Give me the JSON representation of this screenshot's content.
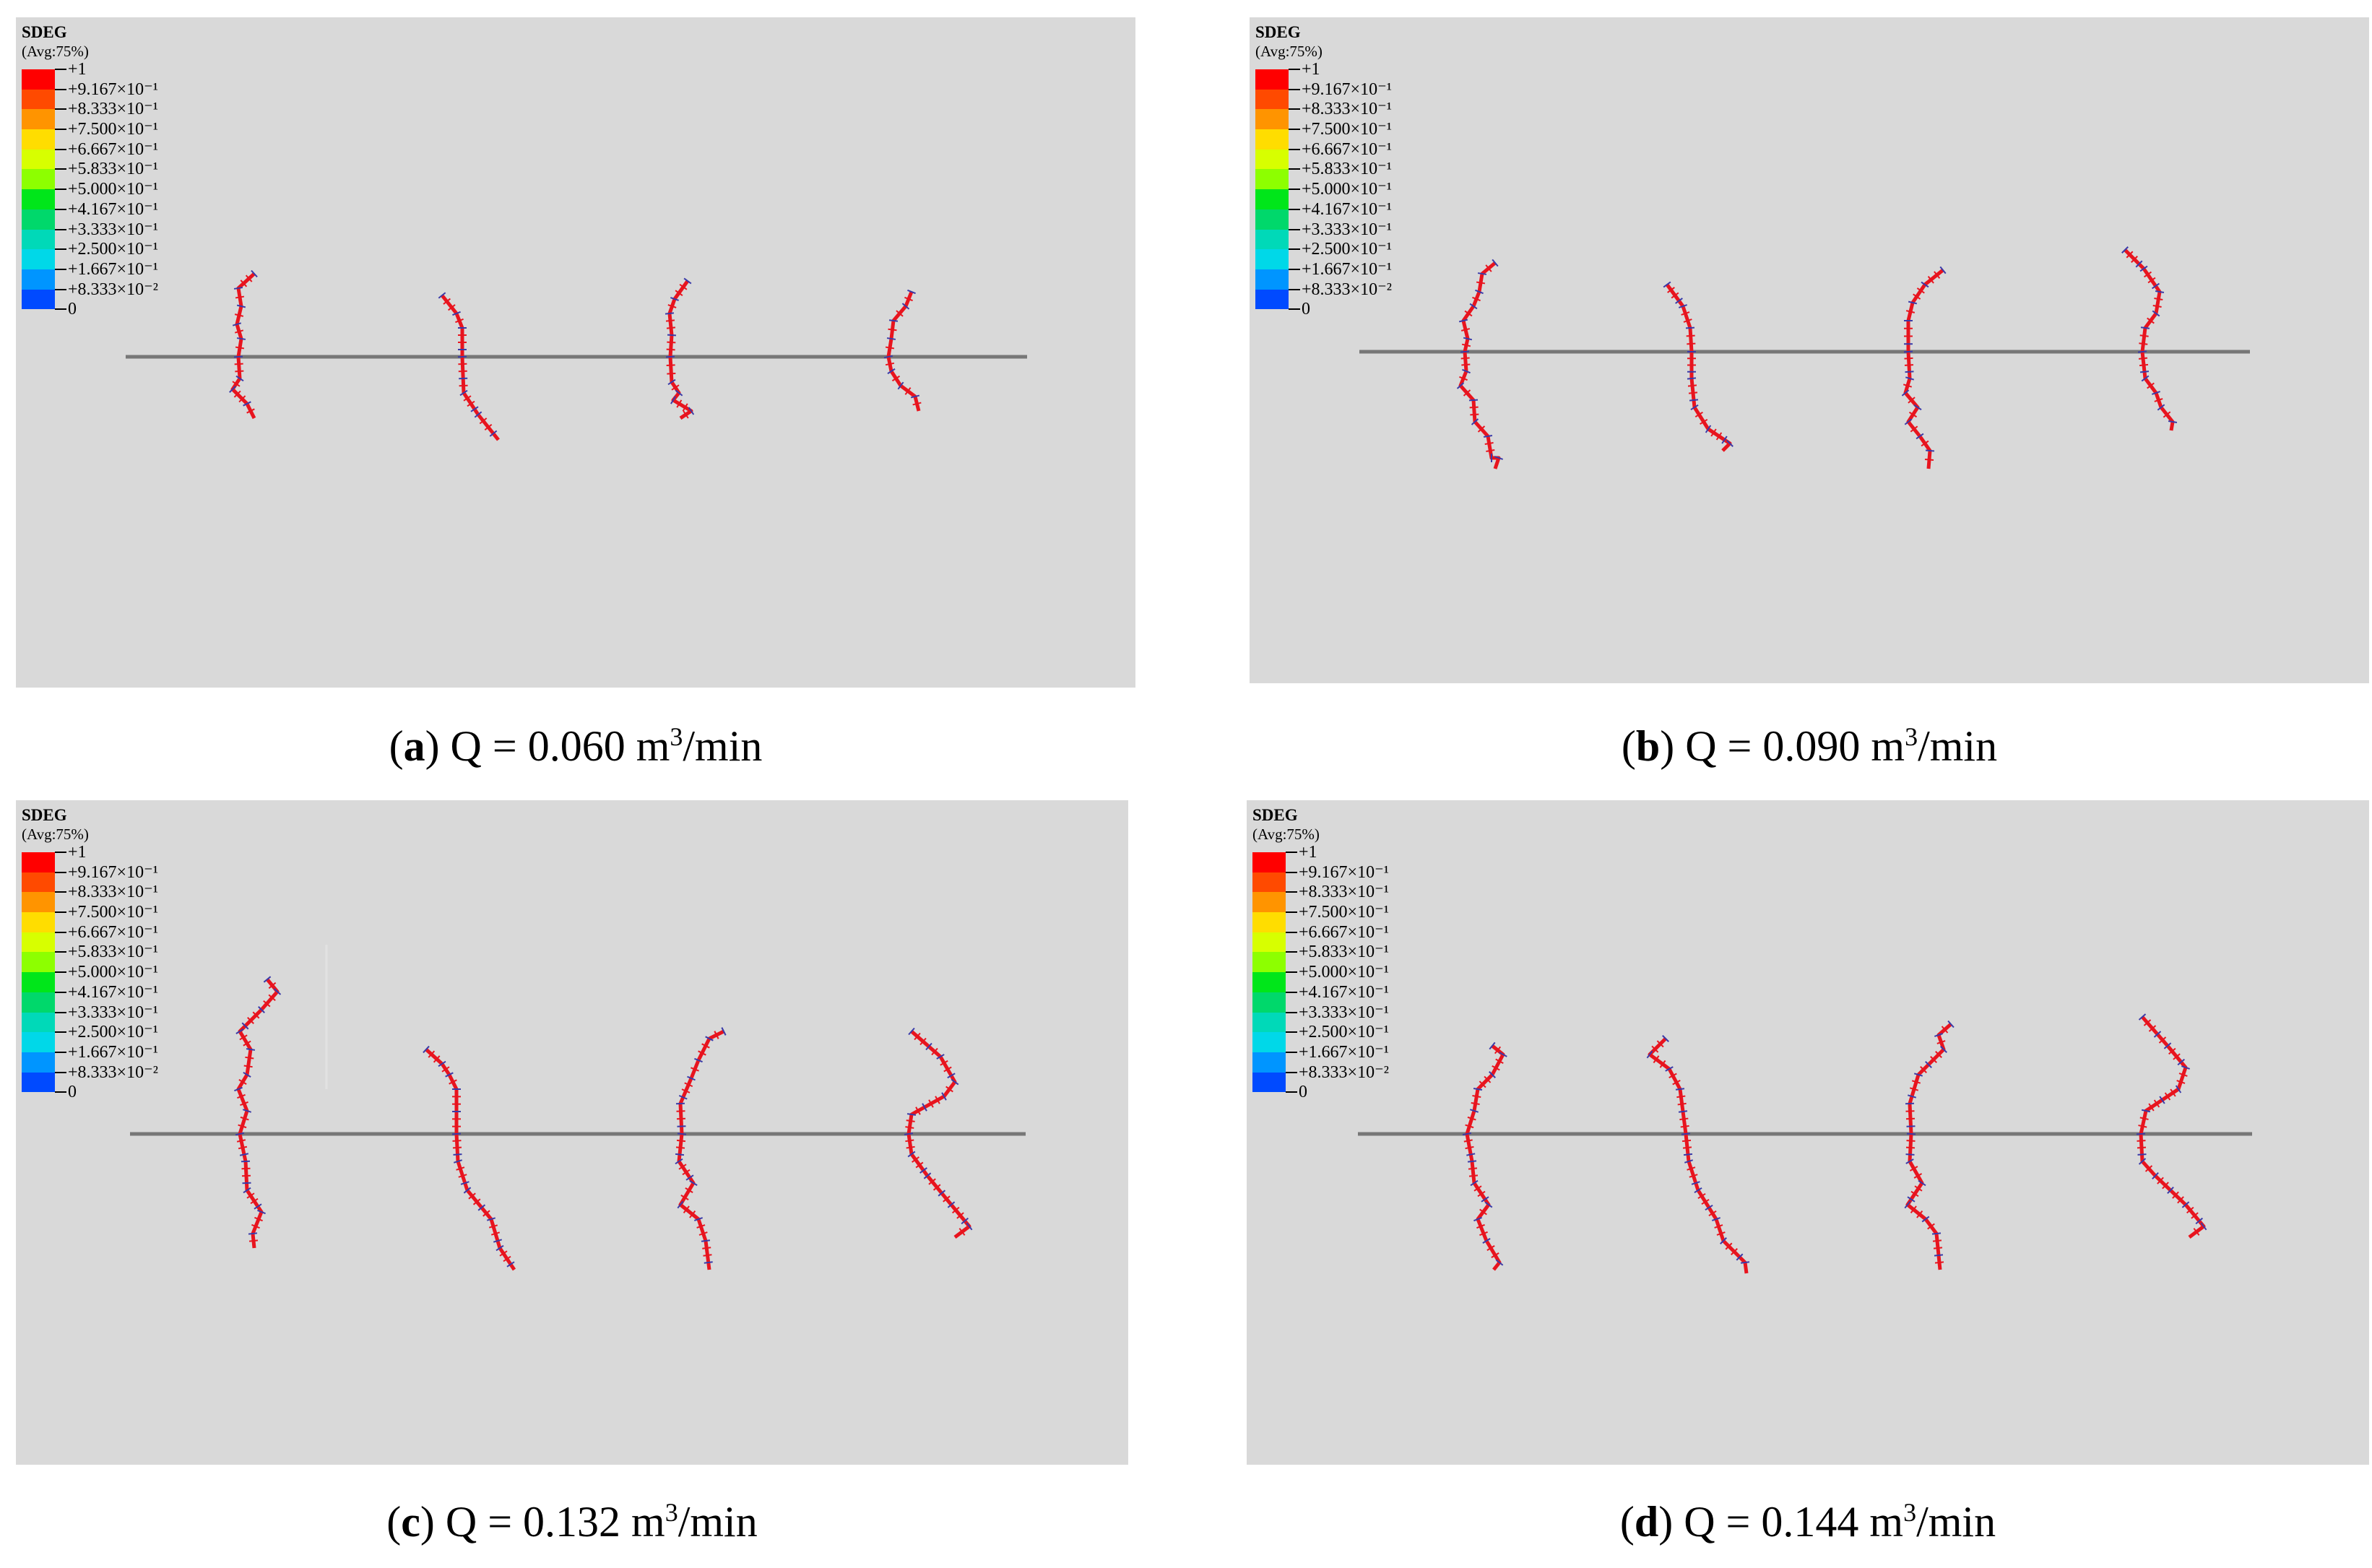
{
  "legend": {
    "variable": "SDEG",
    "averaging": "(Avg:75%)",
    "colors": [
      "#ff0000",
      "#ff4a00",
      "#ff9400",
      "#ffdd00",
      "#d7ff00",
      "#8dff00",
      "#00e61a",
      "#00d86b",
      "#00d9b8",
      "#00d8e8",
      "#0095ff",
      "#004aff",
      "#0000ff"
    ],
    "labels": [
      "+1",
      "+9.167×10⁻¹",
      "+8.333×10⁻¹",
      "+7.500×10⁻¹",
      "+6.667×10⁻¹",
      "+5.833×10⁻¹",
      "+5.000×10⁻¹",
      "+4.167×10⁻¹",
      "+3.333×10⁻¹",
      "+2.500×10⁻¹",
      "+1.667×10⁻¹",
      "+8.333×10⁻²"
    ],
    "min_label": "0"
  },
  "panels": [
    {
      "letter": "a",
      "caption_rest": ") Q = 0.060 m",
      "unit_sup": "3",
      "unit_tail": "/min"
    },
    {
      "letter": "b",
      "caption_rest": ") Q = 0.090 m",
      "unit_sup": "3",
      "unit_tail": "/min"
    },
    {
      "letter": "c",
      "caption_rest": ") Q = 0.132 m",
      "unit_sup": "3",
      "unit_tail": "/min"
    },
    {
      "letter": "d",
      "caption_rest": ") Q = 0.144 m",
      "unit_sup": "3",
      "unit_tail": "/min"
    }
  ],
  "colors": {
    "background": "#d9d9d9",
    "wellbore": "#777777",
    "fracture": "#e8141e",
    "mesh": "#3a3aa8"
  }
}
